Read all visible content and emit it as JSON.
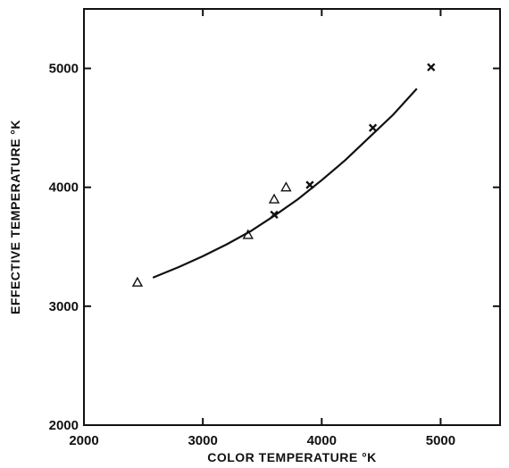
{
  "chart_data": {
    "type": "scatter",
    "xlabel": "COLOR TEMPERATURE °K",
    "ylabel": "EFFECTIVE TEMPERATURE °K",
    "xlim": [
      2000,
      5500
    ],
    "ylim": [
      2000,
      5500
    ],
    "x_ticks": [
      2000,
      3000,
      4000,
      5000
    ],
    "y_ticks": [
      2000,
      3000,
      4000,
      5000
    ],
    "x_tick_labels": [
      "2000",
      "3000",
      "4000",
      "5000"
    ],
    "y_tick_labels": [
      "2000",
      "3000",
      "4000",
      "5000"
    ],
    "grid": false,
    "series": [
      {
        "marker": "triangle",
        "points": [
          {
            "x": 2450,
            "y": 3200
          },
          {
            "x": 3380,
            "y": 3600
          },
          {
            "x": 3600,
            "y": 3900
          },
          {
            "x": 3700,
            "y": 4000
          }
        ]
      },
      {
        "marker": "cross",
        "points": [
          {
            "x": 3600,
            "y": 3770
          },
          {
            "x": 3900,
            "y": 4020
          },
          {
            "x": 4430,
            "y": 4500
          },
          {
            "x": 4920,
            "y": 5010
          }
        ]
      },
      {
        "marker": "none",
        "style": "curve",
        "points": [
          {
            "x": 2580,
            "y": 3240
          },
          {
            "x": 2800,
            "y": 3330
          },
          {
            "x": 3000,
            "y": 3420
          },
          {
            "x": 3200,
            "y": 3520
          },
          {
            "x": 3400,
            "y": 3630
          },
          {
            "x": 3600,
            "y": 3760
          },
          {
            "x": 3800,
            "y": 3900
          },
          {
            "x": 4000,
            "y": 4060
          },
          {
            "x": 4200,
            "y": 4230
          },
          {
            "x": 4400,
            "y": 4420
          },
          {
            "x": 4600,
            "y": 4610
          },
          {
            "x": 4800,
            "y": 4830
          }
        ]
      }
    ]
  }
}
